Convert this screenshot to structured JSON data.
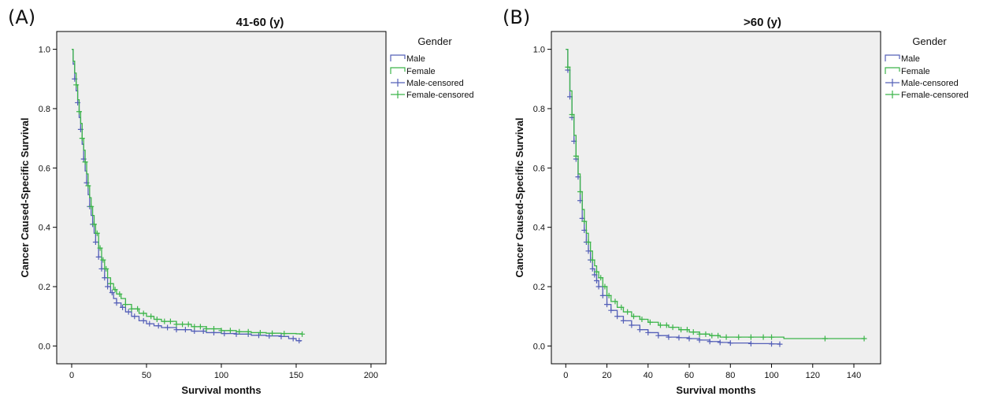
{
  "chart_data": [
    {
      "type": "line",
      "panel_label": "(A)",
      "title": "41-60 (y)",
      "xlabel": "Survival months",
      "ylabel": "Cancer Caused-Specific Survival",
      "xlim": [
        -10,
        210
      ],
      "ylim": [
        -0.06,
        1.06
      ],
      "xticks": [
        0,
        50,
        100,
        150,
        200
      ],
      "yticks": [
        0.0,
        0.2,
        0.4,
        0.6,
        0.8,
        1.0
      ],
      "grid": false,
      "legend": {
        "title": "Gender",
        "placement": "right",
        "entries": [
          "Male",
          "Female",
          "Male-censored",
          "Female-censored"
        ]
      },
      "series": [
        {
          "name": "Male",
          "color": "#5560b8",
          "x": [
            0,
            1,
            2,
            3,
            4,
            5,
            6,
            7,
            8,
            9,
            10,
            11,
            12,
            13,
            14,
            15,
            16,
            18,
            20,
            22,
            24,
            26,
            28,
            30,
            33,
            36,
            40,
            45,
            50,
            55,
            60,
            70,
            80,
            90,
            100,
            110,
            120,
            130,
            140,
            145,
            150,
            153
          ],
          "y": [
            1.0,
            0.95,
            0.9,
            0.86,
            0.82,
            0.77,
            0.73,
            0.68,
            0.63,
            0.59,
            0.55,
            0.51,
            0.47,
            0.44,
            0.41,
            0.38,
            0.35,
            0.3,
            0.26,
            0.23,
            0.2,
            0.18,
            0.16,
            0.145,
            0.13,
            0.115,
            0.1,
            0.085,
            0.075,
            0.068,
            0.062,
            0.055,
            0.05,
            0.045,
            0.042,
            0.04,
            0.036,
            0.034,
            0.032,
            0.025,
            0.018,
            0.015
          ],
          "censored_x": [
            2,
            4,
            6,
            8,
            10,
            12,
            14,
            16,
            18,
            20,
            22,
            24,
            27,
            30,
            34,
            38,
            42,
            48,
            52,
            58,
            64,
            70,
            76,
            82,
            88,
            95,
            102,
            110,
            118,
            125,
            132,
            140,
            148,
            152
          ]
        },
        {
          "name": "Female",
          "color": "#3cb54a",
          "x": [
            0,
            1,
            2,
            3,
            4,
            5,
            6,
            7,
            8,
            9,
            10,
            11,
            12,
            13,
            14,
            15,
            16,
            18,
            20,
            22,
            24,
            26,
            28,
            30,
            33,
            36,
            40,
            45,
            50,
            55,
            60,
            70,
            80,
            90,
            100,
            110,
            120,
            130,
            140,
            150,
            154
          ],
          "y": [
            1.0,
            0.96,
            0.92,
            0.88,
            0.83,
            0.79,
            0.75,
            0.7,
            0.66,
            0.62,
            0.58,
            0.54,
            0.5,
            0.47,
            0.44,
            0.41,
            0.38,
            0.33,
            0.29,
            0.26,
            0.23,
            0.21,
            0.19,
            0.175,
            0.16,
            0.14,
            0.125,
            0.11,
            0.1,
            0.09,
            0.083,
            0.073,
            0.065,
            0.058,
            0.052,
            0.048,
            0.045,
            0.043,
            0.042,
            0.041,
            0.04
          ],
          "censored_x": [
            3,
            5,
            7,
            9,
            11,
            13,
            15,
            17,
            19,
            21,
            23,
            26,
            29,
            32,
            36,
            40,
            44,
            48,
            53,
            57,
            62,
            66,
            70,
            74,
            78,
            82,
            86,
            90,
            95,
            100,
            106,
            112,
            118,
            126,
            134,
            142,
            154
          ]
        }
      ]
    },
    {
      "type": "line",
      "panel_label": "(B)",
      "title": ">60 (y)",
      "xlabel": "Survival months",
      "ylabel": "Cancer Caused-Specific Survival",
      "xlim": [
        -7,
        153
      ],
      "ylim": [
        -0.06,
        1.06
      ],
      "xticks": [
        0,
        20,
        40,
        60,
        80,
        100,
        120,
        140
      ],
      "yticks": [
        0.0,
        0.2,
        0.4,
        0.6,
        0.8,
        1.0
      ],
      "grid": false,
      "legend": {
        "title": "Gender",
        "placement": "right",
        "entries": [
          "Male",
          "Female",
          "Male-censored",
          "Female-censored"
        ]
      },
      "series": [
        {
          "name": "Male",
          "color": "#5560b8",
          "x": [
            0,
            1,
            2,
            3,
            4,
            5,
            6,
            7,
            8,
            9,
            10,
            11,
            12,
            13,
            14,
            15,
            16,
            18,
            20,
            22,
            25,
            28,
            32,
            36,
            40,
            45,
            50,
            55,
            60,
            65,
            70,
            75,
            80,
            90,
            100,
            104
          ],
          "y": [
            1.0,
            0.93,
            0.84,
            0.77,
            0.69,
            0.63,
            0.57,
            0.49,
            0.43,
            0.39,
            0.35,
            0.32,
            0.29,
            0.26,
            0.24,
            0.22,
            0.2,
            0.17,
            0.14,
            0.12,
            0.1,
            0.085,
            0.07,
            0.055,
            0.045,
            0.035,
            0.03,
            0.028,
            0.025,
            0.02,
            0.015,
            0.012,
            0.01,
            0.008,
            0.007,
            0.006
          ],
          "censored_x": [
            1,
            2,
            3,
            4,
            5,
            6,
            7,
            8,
            9,
            10,
            11,
            12,
            13,
            14,
            15,
            16,
            18,
            20,
            22,
            25,
            28,
            32,
            36,
            40,
            45,
            50,
            55,
            60,
            65,
            70,
            75,
            80,
            90,
            100,
            104
          ]
        },
        {
          "name": "Female",
          "color": "#3cb54a",
          "x": [
            0,
            1,
            2,
            3,
            4,
            5,
            6,
            7,
            8,
            9,
            10,
            11,
            12,
            13,
            14,
            15,
            16,
            18,
            20,
            22,
            25,
            28,
            32,
            36,
            40,
            45,
            50,
            55,
            60,
            65,
            70,
            75,
            80,
            90,
            100,
            106,
            110,
            120,
            130,
            140,
            145
          ],
          "y": [
            1.0,
            0.94,
            0.86,
            0.78,
            0.71,
            0.64,
            0.58,
            0.52,
            0.46,
            0.42,
            0.38,
            0.35,
            0.32,
            0.29,
            0.27,
            0.25,
            0.23,
            0.2,
            0.17,
            0.15,
            0.13,
            0.115,
            0.1,
            0.09,
            0.08,
            0.07,
            0.063,
            0.055,
            0.047,
            0.04,
            0.035,
            0.03,
            0.03,
            0.03,
            0.03,
            0.025,
            0.025,
            0.025,
            0.025,
            0.025,
            0.025
          ],
          "censored_x": [
            1,
            3,
            5,
            7,
            9,
            11,
            13,
            15,
            17,
            19,
            21,
            24,
            27,
            30,
            33,
            37,
            41,
            46,
            49,
            52,
            56,
            59,
            62,
            65,
            68,
            71,
            74,
            78,
            84,
            90,
            96,
            100,
            126,
            145
          ]
        }
      ]
    }
  ]
}
